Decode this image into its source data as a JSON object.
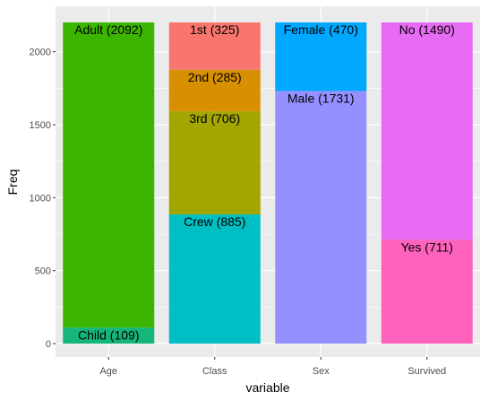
{
  "chart_data": {
    "type": "bar",
    "stacked": true,
    "xlabel": "variable",
    "ylabel": "Freq",
    "ylim": [
      0,
      2201
    ],
    "yticks": [
      0,
      500,
      1000,
      1500,
      2000
    ],
    "grid": true,
    "legend": "none",
    "colors": {
      "panel_background": "#ebebeb",
      "grid_line": "#ffffff",
      "tick_text": "#4d4d4d"
    },
    "categories": [
      "Age",
      "Class",
      "Sex",
      "Survived"
    ],
    "bars": [
      {
        "category": "Age",
        "segments": [
          {
            "label": "Adult (2092)",
            "value": 2092,
            "color": "#3cb500"
          },
          {
            "label": "Child (109)",
            "value": 109,
            "color": "#14b67a"
          }
        ]
      },
      {
        "category": "Class",
        "segments": [
          {
            "label": "1st (325)",
            "value": 325,
            "color": "#f8766d"
          },
          {
            "label": "2nd (285)",
            "value": 285,
            "color": "#d89000"
          },
          {
            "label": "3rd (706)",
            "value": 706,
            "color": "#a3a500"
          },
          {
            "label": "Crew (885)",
            "value": 885,
            "color": "#00bfc4"
          }
        ]
      },
      {
        "category": "Sex",
        "segments": [
          {
            "label": "Female (470)",
            "value": 470,
            "color": "#00a9ff"
          },
          {
            "label": "Male (1731)",
            "value": 1731,
            "color": "#9590ff"
          }
        ]
      },
      {
        "category": "Survived",
        "segments": [
          {
            "label": "No (1490)",
            "value": 1490,
            "color": "#e76bf3"
          },
          {
            "label": "Yes (711)",
            "value": 711,
            "color": "#ff62bc"
          }
        ]
      }
    ]
  }
}
